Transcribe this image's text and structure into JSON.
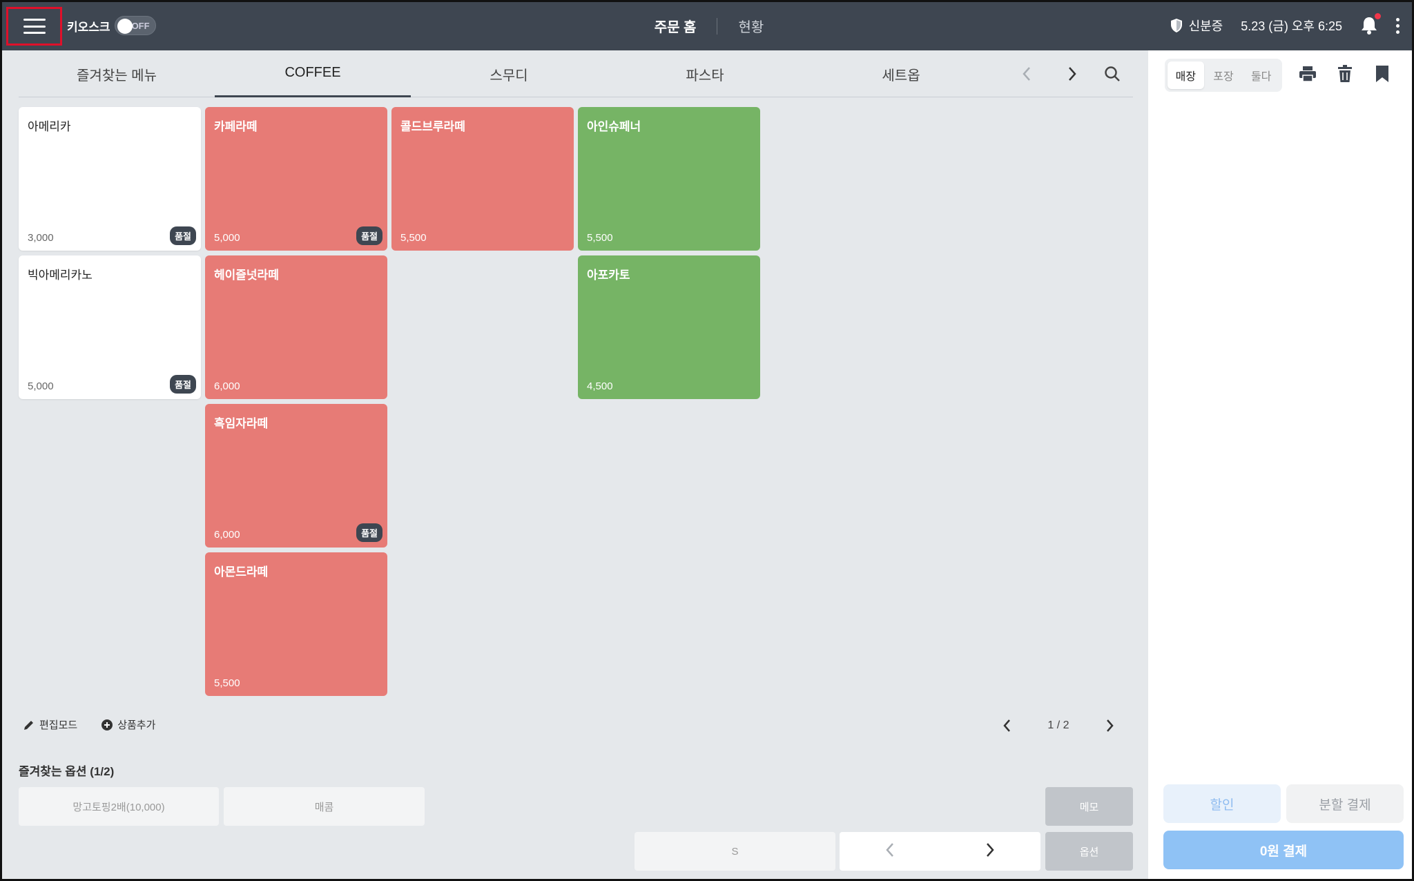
{
  "topbar": {
    "kiosk_label": "키오스크",
    "kiosk_toggle": "OFF",
    "nav_home": "주문 홈",
    "nav_status": "현황",
    "shield_label": "신분증",
    "datetime": "5.23 (금) 오후 6:25"
  },
  "tabs": [
    {
      "label": "즐겨찾는 메뉴"
    },
    {
      "label": "COFFEE"
    },
    {
      "label": "스무디"
    },
    {
      "label": "파스타"
    },
    {
      "label": "세트옵"
    }
  ],
  "active_tab": "COFFEE",
  "menu_items": [
    {
      "name": "아메리카",
      "price": "3,000",
      "badge": "품절",
      "color": "#ffffff"
    },
    {
      "name": "빅아메리카노",
      "price": "5,000",
      "badge": "품절",
      "color": "#ffffff"
    },
    {
      "name": "카페라떼",
      "price": "5,000",
      "badge": "품절",
      "color": "#e77b76"
    },
    {
      "name": "헤이즐넛라떼",
      "price": "6,000",
      "badge": "",
      "color": "#e77b76"
    },
    {
      "name": "흑임자라떼",
      "price": "6,000",
      "badge": "품절",
      "color": "#e77b76"
    },
    {
      "name": "아몬드라떼",
      "price": "5,500",
      "badge": "",
      "color": "#e77b76"
    },
    {
      "name": "콜드브루라떼",
      "price": "5,500",
      "badge": "",
      "color": "#e77b76"
    },
    {
      "name": "아인슈페너",
      "price": "5,500",
      "badge": "",
      "color": "#76b465"
    },
    {
      "name": "아포카토",
      "price": "4,500",
      "badge": "",
      "color": "#76b465"
    }
  ],
  "edit": {
    "edit_mode": "편집모드",
    "add_product": "상품추가"
  },
  "pager": {
    "text": "1 / 2"
  },
  "fav_options": {
    "title": "즐겨찾는 옵션 (1/2)",
    "opt1": "망고토핑2배(10,000)",
    "opt2": "매콤",
    "memo": "메모",
    "size": "S",
    "option": "옵션"
  },
  "right": {
    "seg": [
      "매장",
      "포장",
      "둘다"
    ],
    "active_seg": "매장",
    "discount": "할인",
    "split_pay": "분할 결제",
    "pay": "0원 결제"
  },
  "colors": {
    "topbar": "#3e4651",
    "red_card": "#e77b76",
    "green_card": "#76b465",
    "pay_btn": "#8fc2f5"
  }
}
